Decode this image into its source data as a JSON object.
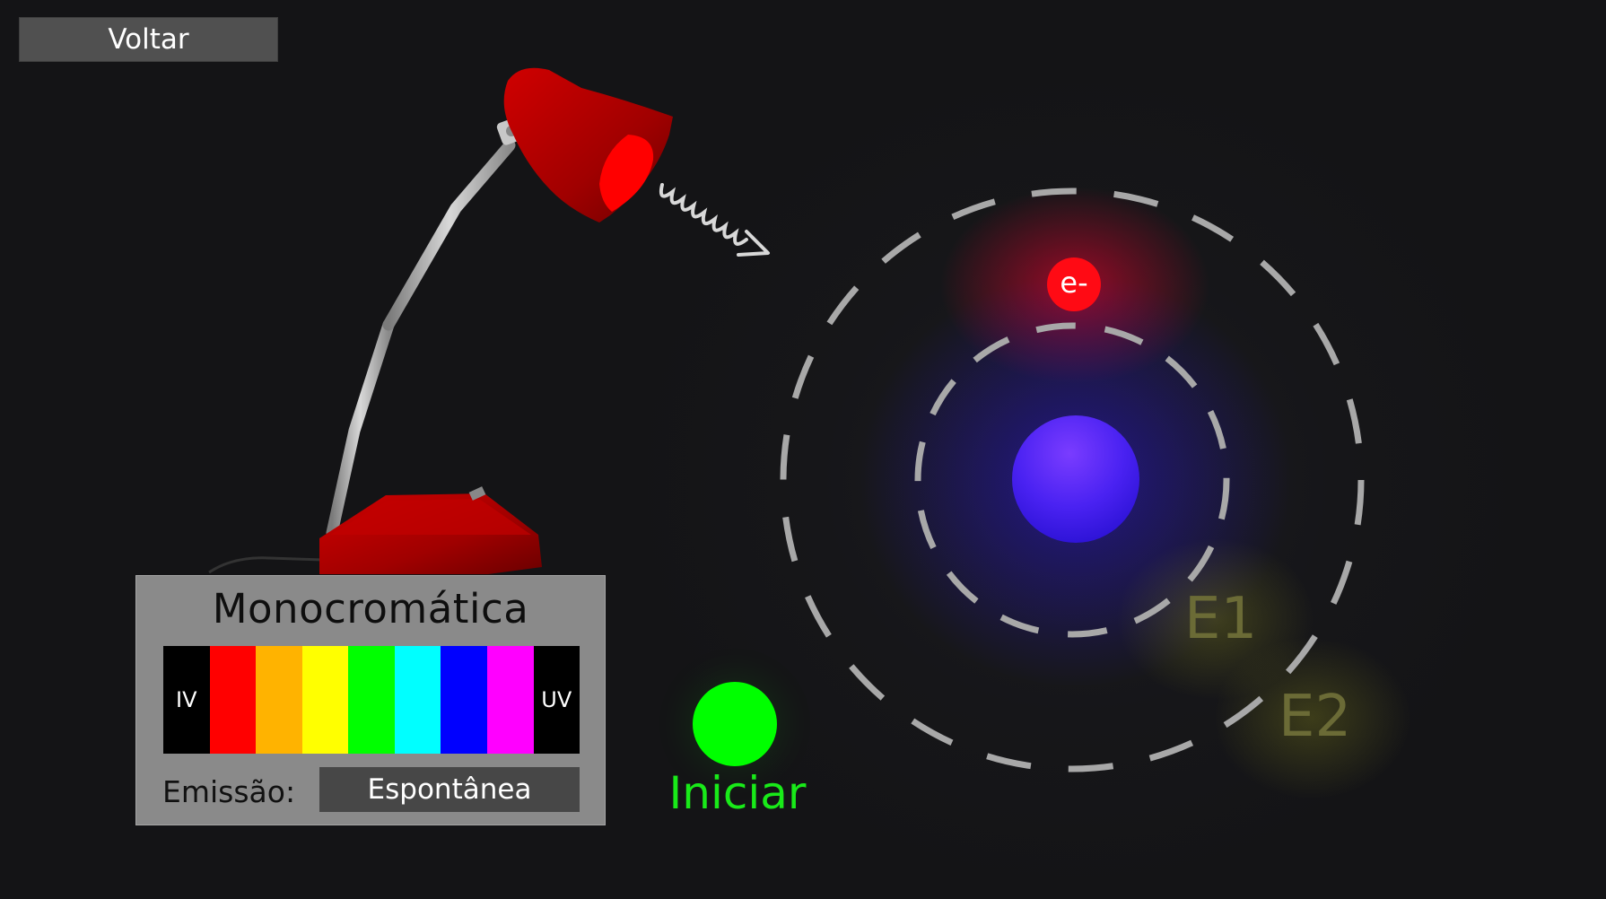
{
  "toolbar": {
    "back_label": "Voltar"
  },
  "light_panel": {
    "title": "Monocromática",
    "spectrum": [
      {
        "id": "iv",
        "label": "IV",
        "color": "#000000"
      },
      {
        "id": "red",
        "label": "",
        "color": "#ff0000"
      },
      {
        "id": "orange",
        "label": "",
        "color": "#ffb300"
      },
      {
        "id": "yellow",
        "label": "",
        "color": "#ffff00"
      },
      {
        "id": "green",
        "label": "",
        "color": "#00ff00"
      },
      {
        "id": "cyan",
        "label": "",
        "color": "#00ffff"
      },
      {
        "id": "blue",
        "label": "",
        "color": "#0000ff"
      },
      {
        "id": "magenta",
        "label": "",
        "color": "#ff00ff"
      },
      {
        "id": "uv",
        "label": "UV",
        "color": "#000000"
      }
    ],
    "emission_label": "Emissão:",
    "emission_value": "Espontânea"
  },
  "start": {
    "label": "Iniciar",
    "color": "#00ff00"
  },
  "atom": {
    "electron_label": "e-",
    "electron_color": "#ff0a14",
    "nucleus_color": "#4b20f0",
    "levels": [
      {
        "label": "E1"
      },
      {
        "label": "E2"
      }
    ]
  },
  "lamp": {
    "color": "#b00000",
    "light_color": "#ff0000"
  }
}
